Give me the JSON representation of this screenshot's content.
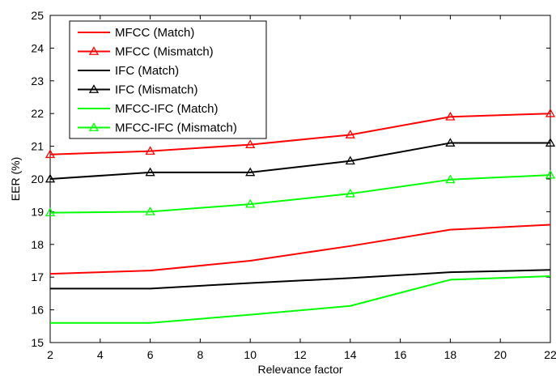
{
  "chart_data": {
    "type": "line",
    "title": "",
    "xlabel": "Relevance factor",
    "ylabel": "EER (%)",
    "xlim": [
      2,
      22
    ],
    "ylim": [
      15,
      25
    ],
    "xticks": [
      2,
      4,
      6,
      8,
      10,
      12,
      14,
      16,
      18,
      20,
      22
    ],
    "yticks": [
      15,
      16,
      17,
      18,
      19,
      20,
      21,
      22,
      23,
      24,
      25
    ],
    "grid": false,
    "legend_position": "top-left",
    "x": [
      2,
      6,
      10,
      14,
      18,
      22
    ],
    "series": [
      {
        "name": "MFCC (Match)",
        "color": "#ff0000",
        "marker": "none",
        "values": [
          17.1,
          17.2,
          17.5,
          17.95,
          18.45,
          18.6
        ]
      },
      {
        "name": "MFCC (Mismatch)",
        "color": "#ff0000",
        "marker": "triangle",
        "values": [
          20.75,
          20.85,
          21.05,
          21.35,
          21.9,
          22.0
        ]
      },
      {
        "name": "IFC (Match)",
        "color": "#000000",
        "marker": "none",
        "values": [
          16.65,
          16.65,
          16.82,
          16.97,
          17.15,
          17.22
        ]
      },
      {
        "name": "IFC (Mismatch)",
        "color": "#000000",
        "marker": "triangle",
        "values": [
          20.0,
          20.2,
          20.2,
          20.55,
          21.1,
          21.1
        ]
      },
      {
        "name": "MFCC-IFC (Match)",
        "color": "#00ff00",
        "marker": "none",
        "values": [
          15.6,
          15.6,
          15.85,
          16.12,
          16.92,
          17.03
        ]
      },
      {
        "name": "MFCC-IFC (Mismatch)",
        "color": "#00ff00",
        "marker": "triangle",
        "values": [
          18.97,
          19.0,
          19.23,
          19.55,
          19.98,
          20.12
        ]
      }
    ]
  }
}
